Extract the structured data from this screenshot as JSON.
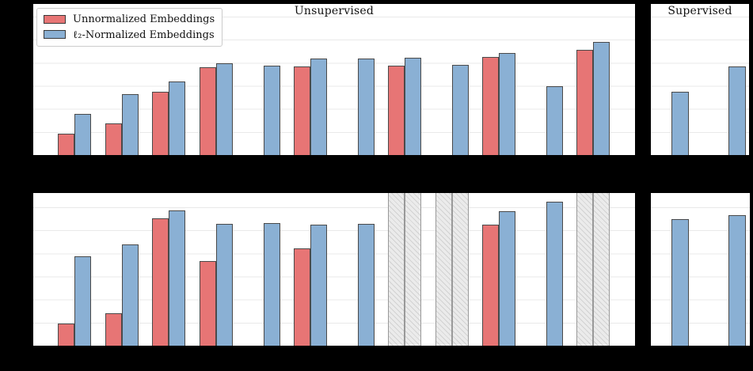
{
  "figure": {
    "background_color": "#000000",
    "panel_titles": {
      "unsupervised": "Unsupervised",
      "supervised": "Supervised"
    },
    "legend": {
      "items": [
        {
          "label": "Unnormalized Embeddings",
          "color": "#e77575"
        },
        {
          "label": "ℓ₂-Normalized Embeddings",
          "color": "#8ab0d4"
        }
      ]
    },
    "colors": {
      "unnormalized": "#e77575",
      "normalized": "#8ab0d4",
      "bar_edge": "#4a4a4a",
      "na_fill": "#ebebeb",
      "na_hatch": "#d2d2d2",
      "na_edge": "#999999",
      "gridline": "#e9e9e9",
      "panel_border": "#000000"
    },
    "notes": "x and y tick labels are not visible in the image (rendered black on black); bar values are fractions of panel plot height"
  },
  "chart_data": [
    {
      "id": "unsupervised-top",
      "type": "bar",
      "title": "Unsupervised",
      "layout": "grouped",
      "n_groups": 12,
      "categories": [
        "",
        "",
        "",
        "",
        "",
        "",
        "",
        "",
        "",
        "",
        "",
        ""
      ],
      "series": [
        {
          "name": "Unnormalized Embeddings",
          "values": [
            0.144,
            0.211,
            0.419,
            0.581,
            null,
            0.586,
            null,
            0.594,
            null,
            0.649,
            null,
            0.697
          ]
        },
        {
          "name": "ℓ₂-Normalized Embeddings",
          "values": [
            0.273,
            0.402,
            0.485,
            0.607,
            0.591,
            0.641,
            0.639,
            0.646,
            0.599,
            0.677,
            0.457,
            0.747
          ]
        }
      ],
      "na_groups": [],
      "ylim": [
        0,
        1
      ],
      "units": "fraction of plot height",
      "grid": true
    },
    {
      "id": "supervised-top",
      "type": "bar",
      "title": "Supervised",
      "layout": "single",
      "series": [
        {
          "name": "ℓ₂-Normalized Embeddings",
          "values": [
            0.418,
            0.586
          ]
        }
      ],
      "ylim": [
        0,
        1
      ],
      "units": "fraction of plot height",
      "grid": true
    },
    {
      "id": "unsupervised-bottom",
      "type": "bar",
      "title": "",
      "layout": "grouped",
      "n_groups": 12,
      "categories": [
        "",
        "",
        "",
        "",
        "",
        "",
        "",
        "",
        "",
        "",
        "",
        ""
      ],
      "series": [
        {
          "name": "Unnormalized Embeddings",
          "values": [
            0.145,
            0.214,
            0.835,
            0.556,
            null,
            0.636,
            null,
            null,
            null,
            0.791,
            null,
            null
          ]
        },
        {
          "name": "ℓ₂-Normalized Embeddings",
          "values": [
            0.584,
            0.665,
            0.886,
            0.798,
            0.801,
            0.794,
            0.796,
            null,
            null,
            0.883,
            0.944,
            null
          ]
        }
      ],
      "na_groups": [
        7,
        8,
        11
      ],
      "ylim": [
        0,
        1
      ],
      "units": "fraction of plot height",
      "grid": true
    },
    {
      "id": "supervised-bottom",
      "type": "bar",
      "title": "",
      "layout": "single",
      "series": [
        {
          "name": "ℓ₂-Normalized Embeddings",
          "values": [
            0.83,
            0.856
          ]
        }
      ],
      "ylim": [
        0,
        1
      ],
      "units": "fraction of plot height",
      "grid": true
    }
  ]
}
